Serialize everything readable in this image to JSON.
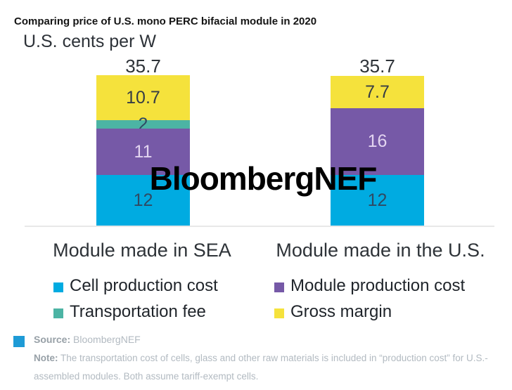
{
  "title": "Comparing price of U.S. mono PERC bifacial module in 2020",
  "watermark": "BloombergNEF",
  "chart_data": {
    "type": "bar",
    "stacked": true,
    "title": "Comparing price of U.S. mono PERC bifacial module in 2020",
    "unit_label": "U.S. cents per W",
    "categories": [
      "Module made in SEA",
      "Module made in the U.S."
    ],
    "series": [
      {
        "name": "Cell production cost",
        "values": [
          12,
          12
        ],
        "color": "#00ABE1",
        "label_color": "#2f4a63"
      },
      {
        "name": "Module production cost",
        "values": [
          11,
          16
        ],
        "color": "#7659A7",
        "label_color": "#e2d4f0"
      },
      {
        "name": "Transportation fee",
        "values": [
          2,
          0
        ],
        "color": "#4CB4A4",
        "label_color": "#2f4a63"
      },
      {
        "name": "Gross margin",
        "values": [
          10.7,
          7.7
        ],
        "color": "#F5E23C",
        "label_color": "#363d45"
      }
    ],
    "totals": [
      "35.7",
      "35.7"
    ],
    "ylim": [
      0,
      35.7
    ],
    "grid": false,
    "legend_position": "bottom"
  },
  "footer": {
    "source_label": "Source:",
    "source_value": "BloombergNEF",
    "note_label": "Note:",
    "note_text": "The transportation cost of cells, glass and other raw materials is included in “production cost” for U.S.-assembled modules. Both assume tariff-exempt cells.",
    "marker_color": "#1E9BD6"
  }
}
